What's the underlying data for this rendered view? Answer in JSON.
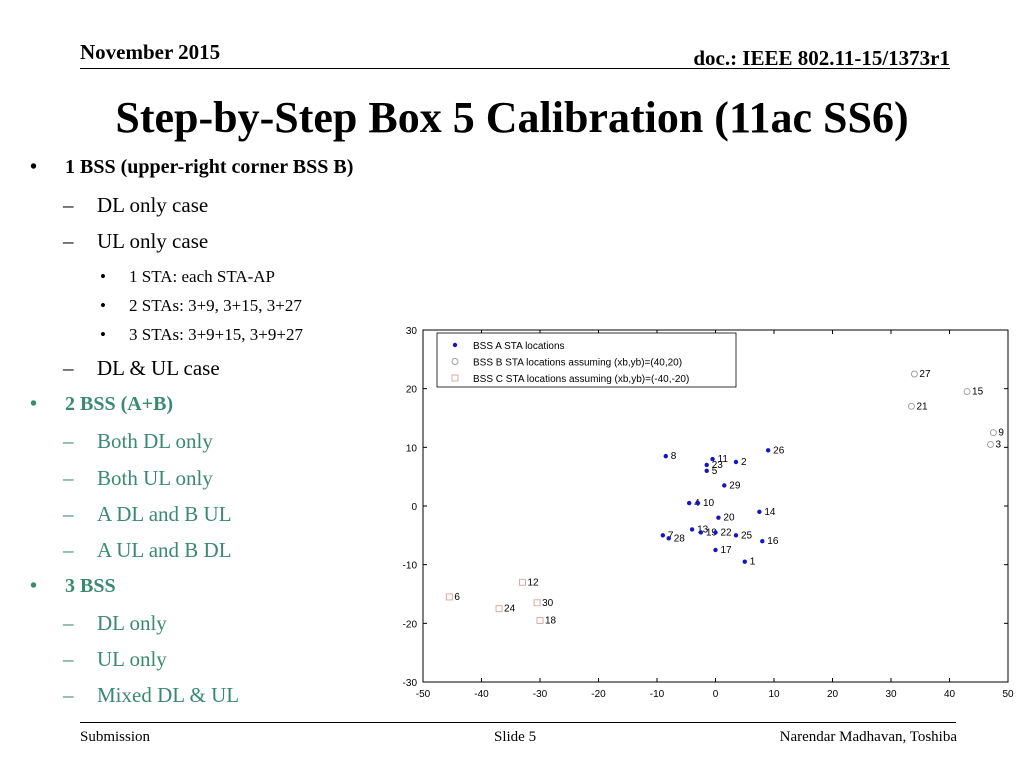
{
  "header": {
    "date": "November 2015",
    "doc_id": "doc.: IEEE 802.11-15/1373r1"
  },
  "title": "Step-by-Step Box 5 Calibration (11ac SS6)",
  "bullets": [
    {
      "level": 1,
      "marker": "•",
      "text": "1 BSS (upper-right corner BSS B)",
      "color": "#000000"
    },
    {
      "level": 2,
      "marker": "–",
      "text": "DL only case",
      "color": "#000000"
    },
    {
      "level": 2,
      "marker": "–",
      "text": "UL only case",
      "color": "#000000"
    },
    {
      "level": 3,
      "marker": "•",
      "text": "1 STA: each STA-AP",
      "color": "#000000"
    },
    {
      "level": 3,
      "marker": "•",
      "text": "2 STAs: 3+9, 3+15, 3+27",
      "color": "#000000"
    },
    {
      "level": 3,
      "marker": "•",
      "text": "3 STAs: 3+9+15, 3+9+27",
      "color": "#000000"
    },
    {
      "level": 2,
      "marker": "–",
      "text": "DL & UL case",
      "color": "#000000"
    },
    {
      "level": 1,
      "marker": "•",
      "text": "2 BSS (A+B)",
      "color": "#3a8a6e"
    },
    {
      "level": 2,
      "marker": "–",
      "text": "Both DL only",
      "color": "#3a8a6e"
    },
    {
      "level": 2,
      "marker": "–",
      "text": "Both UL only",
      "color": "#3a8a6e"
    },
    {
      "level": 2,
      "marker": "–",
      "text": "A DL and B UL",
      "color": "#3a8a6e"
    },
    {
      "level": 2,
      "marker": "–",
      "text": "A UL and B DL",
      "color": "#3a8a6e"
    },
    {
      "level": 1,
      "marker": "•",
      "text": "3 BSS",
      "color": "#3a8a6e"
    },
    {
      "level": 2,
      "marker": "–",
      "text": "DL only",
      "color": "#3a8a6e"
    },
    {
      "level": 2,
      "marker": "–",
      "text": "UL only",
      "color": "#3a8a6e"
    },
    {
      "level": 2,
      "marker": "–",
      "text": "Mixed DL & UL",
      "color": "#3a8a6e"
    }
  ],
  "chart_data": {
    "type": "scatter",
    "xlim": [
      -50,
      50
    ],
    "ylim": [
      -30,
      30
    ],
    "xticks": [
      -50,
      -40,
      -30,
      -20,
      -10,
      0,
      10,
      20,
      30,
      40,
      50
    ],
    "yticks": [
      -30,
      -20,
      -10,
      0,
      10,
      20,
      30
    ],
    "legend_position": "top-left",
    "series": [
      {
        "name": "BSS A STA locations",
        "marker": "dot",
        "color": "#1515c8",
        "points": [
          {
            "label": "1",
            "x": 5,
            "y": -9.5
          },
          {
            "label": "2",
            "x": 3.5,
            "y": 7.5
          },
          {
            "label": "4",
            "x": -4.5,
            "y": 0.5
          },
          {
            "label": "5",
            "x": -1.5,
            "y": 6
          },
          {
            "label": "7",
            "x": -9,
            "y": -5
          },
          {
            "label": "8",
            "x": -8.5,
            "y": 8.5
          },
          {
            "label": "10",
            "x": -3,
            "y": 0.5
          },
          {
            "label": "11",
            "x": -0.5,
            "y": 8
          },
          {
            "label": "13",
            "x": -4,
            "y": -4
          },
          {
            "label": "14",
            "x": 7.5,
            "y": -1
          },
          {
            "label": "16",
            "x": 8,
            "y": -6
          },
          {
            "label": "17",
            "x": 0,
            "y": -7.5
          },
          {
            "label": "19",
            "x": -2.5,
            "y": -4.5
          },
          {
            "label": "20",
            "x": 0.5,
            "y": -2
          },
          {
            "label": "22",
            "x": 0,
            "y": -4.5
          },
          {
            "label": "23",
            "x": -1.5,
            "y": 7
          },
          {
            "label": "25",
            "x": 3.5,
            "y": -5
          },
          {
            "label": "26",
            "x": 9,
            "y": 9.5
          },
          {
            "label": "28",
            "x": -8,
            "y": -5.5
          },
          {
            "label": "29",
            "x": 1.5,
            "y": 3.5
          }
        ]
      },
      {
        "name": "BSS B STA locations assuming (xb,yb)=(40,20)",
        "marker": "circle",
        "color": "#9a9a9a",
        "points": [
          {
            "label": "3",
            "x": 47,
            "y": 10.5
          },
          {
            "label": "9",
            "x": 47.5,
            "y": 12.5
          },
          {
            "label": "15",
            "x": 43,
            "y": 19.5
          },
          {
            "label": "21",
            "x": 33.5,
            "y": 17
          },
          {
            "label": "27",
            "x": 34,
            "y": 22.5
          }
        ]
      },
      {
        "name": "BSS C STA locations assuming (xb,yb)=(-40,-20)",
        "marker": "square",
        "color": "#d8a0a0",
        "points": [
          {
            "label": "6",
            "x": -45.5,
            "y": -15.5
          },
          {
            "label": "12",
            "x": -33,
            "y": -13
          },
          {
            "label": "18",
            "x": -30,
            "y": -19.5
          },
          {
            "label": "24",
            "x": -37,
            "y": -17.5
          },
          {
            "label": "30",
            "x": -30.5,
            "y": -16.5
          }
        ]
      }
    ]
  },
  "footer": {
    "left": "Submission",
    "center": "Slide 5",
    "right": "Narendar Madhavan, Toshiba"
  }
}
